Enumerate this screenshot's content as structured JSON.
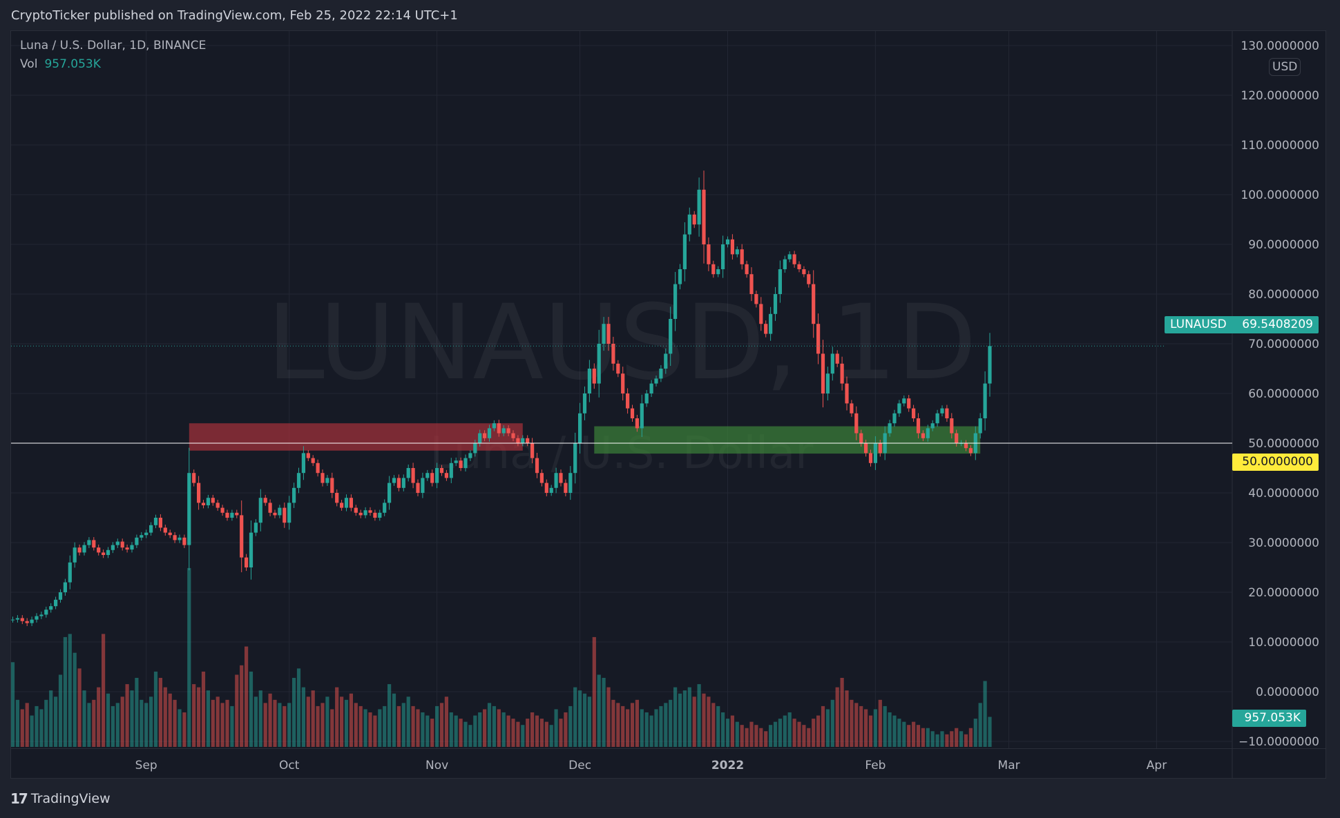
{
  "header": {
    "published": "CryptoTicker published on TradingView.com, Feb 25, 2022 22:14 UTC+1"
  },
  "legend": {
    "symbol": "Luna / U.S. Dollar, 1D, BINANCE",
    "vol_label": "Vol",
    "vol_value": "957.053K"
  },
  "watermark": {
    "line1": "LUNAUSD, 1D",
    "line2": "Luna / U.S. Dollar"
  },
  "price_axis": {
    "currency_button": "USD",
    "last_price_symbol": "LUNAUSD",
    "last_price": "69.5408209",
    "hline_value": "50.0000000",
    "volume_value": "957.053K"
  },
  "footer": {
    "brand": "TradingView"
  },
  "colors": {
    "up": "#26a69a",
    "down": "#ef5350",
    "hline": "#ffffff",
    "hline_label": "#ffeb3b",
    "red_zone": "#b2323c",
    "green_zone": "#3f8a3a",
    "background": "#161a25"
  },
  "chart_data": {
    "type": "candlestick",
    "title": "Luna / U.S. Dollar, 1D, BINANCE",
    "start_date": "2021-08-04",
    "end_date": "2022-02-25",
    "ylim": [
      -10,
      130
    ],
    "y_ticks": [
      "130.0000000",
      "120.0000000",
      "110.0000000",
      "100.0000000",
      "90.0000000",
      "80.0000000",
      "70.0000000",
      "60.0000000",
      "50.0000000",
      "40.0000000",
      "30.0000000",
      "20.0000000",
      "10.0000000",
      "0.0000000",
      "−10.0000000"
    ],
    "y_tick_values": [
      130,
      120,
      110,
      100,
      90,
      80,
      70,
      60,
      50,
      40,
      30,
      20,
      10,
      0,
      -10
    ],
    "x_ticks": [
      {
        "label": "Sep",
        "date": "2021-09-01"
      },
      {
        "label": "Oct",
        "date": "2021-10-01"
      },
      {
        "label": "Nov",
        "date": "2021-11-01"
      },
      {
        "label": "Dec",
        "date": "2021-12-01"
      },
      {
        "label": "2022",
        "date": "2022-01-01",
        "bold": true
      },
      {
        "label": "Feb",
        "date": "2022-02-01"
      },
      {
        "label": "Mar",
        "date": "2022-03-01"
      },
      {
        "label": "Apr",
        "date": "2022-04-01"
      }
    ],
    "grid": true,
    "close": [
      14.5,
      14.8,
      14.2,
      13.8,
      14.5,
      15.2,
      15.5,
      16.5,
      17.2,
      18.5,
      20,
      22,
      26,
      29,
      28,
      29.5,
      30.5,
      29,
      28,
      27.5,
      28.5,
      29.5,
      30.2,
      29,
      28.6,
      29.5,
      31,
      31.5,
      32,
      33.5,
      35,
      33,
      32,
      31.5,
      30.5,
      31,
      29.5,
      44,
      42,
      38,
      37.5,
      39,
      38,
      37,
      36,
      35,
      36,
      35.5,
      27,
      25,
      32,
      34,
      39,
      38,
      36,
      35.5,
      37,
      34,
      38,
      41,
      44,
      48,
      47,
      46,
      44,
      42,
      43,
      40,
      38,
      37,
      39,
      37,
      36,
      35.5,
      36.5,
      36,
      35,
      36,
      38,
      42,
      43,
      41,
      43,
      45,
      42,
      40,
      43,
      44,
      42,
      45,
      44,
      43,
      46,
      46.5,
      45,
      47,
      48,
      50,
      52,
      51,
      53,
      54,
      52,
      53,
      52,
      51,
      50,
      51,
      50,
      47,
      44,
      42,
      40,
      41,
      44,
      42,
      40,
      44,
      50,
      56,
      60,
      65,
      62,
      70,
      74,
      70,
      66,
      64,
      60,
      57,
      55,
      53,
      58,
      60,
      62,
      63,
      65,
      68,
      75,
      82,
      85,
      92,
      96,
      94,
      101,
      90,
      86,
      84,
      85,
      90,
      91,
      88,
      89,
      86,
      84,
      80,
      78,
      74,
      72,
      76,
      80,
      85,
      87,
      88,
      86,
      85,
      84,
      82,
      74,
      68,
      60,
      64,
      68,
      66,
      62,
      58,
      56,
      52,
      50,
      48,
      46,
      50,
      48,
      52,
      54,
      56,
      58,
      59,
      57,
      55,
      52,
      51,
      53,
      54,
      56,
      57,
      55,
      52,
      50,
      50,
      49,
      48,
      52,
      55,
      62,
      69.54
    ],
    "volume_k": [
      2700,
      1500,
      1200,
      1400,
      1000,
      1300,
      1200,
      1500,
      1800,
      1600,
      2300,
      3500,
      3600,
      3000,
      2500,
      1800,
      1400,
      1500,
      1900,
      3600,
      1700,
      1300,
      1400,
      1600,
      2000,
      1800,
      2200,
      1500,
      1400,
      1600,
      2400,
      2200,
      1900,
      1700,
      1500,
      1200,
      1100,
      5700,
      2000,
      1900,
      2400,
      1800,
      1500,
      1600,
      1400,
      1500,
      1300,
      2300,
      2600,
      3200,
      2400,
      1600,
      1800,
      1400,
      1700,
      1500,
      1400,
      1300,
      1400,
      2200,
      2500,
      1900,
      1600,
      1800,
      1300,
      1400,
      1600,
      1200,
      1900,
      1600,
      1500,
      1700,
      1400,
      1300,
      1200,
      1100,
      1000,
      1200,
      1300,
      2000,
      1700,
      1300,
      1400,
      1600,
      1300,
      1200,
      1100,
      1000,
      900,
      1300,
      1400,
      1600,
      1100,
      1000,
      900,
      800,
      700,
      1000,
      1100,
      1200,
      1400,
      1300,
      1200,
      1100,
      1000,
      900,
      800,
      700,
      900,
      1100,
      1000,
      900,
      800,
      700,
      1200,
      900,
      1100,
      1300,
      1900,
      1800,
      1700,
      1600,
      3500,
      2300,
      2200,
      1900,
      1500,
      1400,
      1300,
      1200,
      1400,
      1500,
      1200,
      1100,
      1000,
      1200,
      1300,
      1400,
      1500,
      1900,
      1700,
      1800,
      1900,
      1600,
      2000,
      1700,
      1600,
      1400,
      1300,
      1100,
      900,
      1000,
      800,
      700,
      600,
      800,
      700,
      600,
      500,
      700,
      800,
      900,
      1000,
      1100,
      900,
      800,
      700,
      600,
      900,
      1000,
      1300,
      1200,
      1500,
      1900,
      2200,
      1800,
      1500,
      1400,
      1300,
      1200,
      1000,
      1200,
      1500,
      1300,
      1100,
      1000,
      900,
      800,
      700,
      800,
      700,
      600,
      600,
      500,
      400,
      500,
      400,
      500,
      600,
      500,
      400,
      600,
      900,
      1400,
      2100,
      957
    ],
    "drawings": [
      {
        "type": "rectangle",
        "name": "resistance-zone",
        "from": "2021-09-10",
        "to": "2021-11-19",
        "price_top": 54,
        "price_bottom": 48.5,
        "color": "red"
      },
      {
        "type": "rectangle",
        "name": "support-zone",
        "from": "2021-12-04",
        "to": "2022-02-23",
        "price_top": 53.4,
        "price_bottom": 47.9,
        "color": "green"
      },
      {
        "type": "horizontal_line",
        "price": 50
      },
      {
        "type": "last_price_line",
        "price": 69.5408209
      }
    ]
  }
}
